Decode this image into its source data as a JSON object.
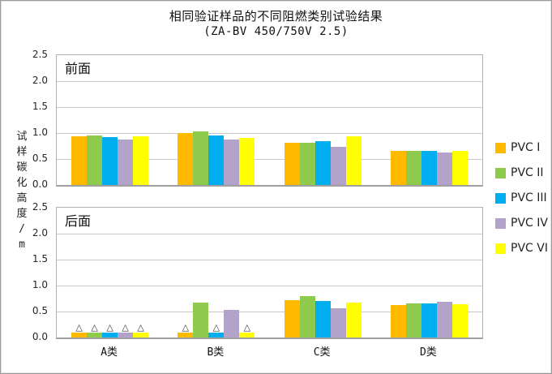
{
  "title": "相同验证样品的不同阻燃类别试验结果",
  "subtitle": "(ZA-BV 450/750V 2.5)",
  "y_axis_title": "试样碳化高度/m",
  "marker_glyph": "△",
  "colors": {
    "pvc1": "#ffba00",
    "pvc2": "#8ecb4d",
    "pvc3": "#00aeef",
    "pvc4": "#b3a2c9",
    "pvc6": "#ffff00",
    "gridline": "#c8c8c8",
    "panel_border": "#a0a0a0"
  },
  "legend": {
    "entries": [
      {
        "label": "PVC I",
        "color": "#ffba00"
      },
      {
        "label": "PVC II",
        "color": "#8ecb4d"
      },
      {
        "label": "PVC III",
        "color": "#00aeef"
      },
      {
        "label": "PVC IV",
        "color": "#b3a2c9"
      },
      {
        "label": "PVC VI",
        "color": "#ffff00"
      }
    ]
  },
  "chart_data": [
    {
      "type": "bar",
      "panel_label": "前面",
      "categories": [
        "A类",
        "B类",
        "C类",
        "D类"
      ],
      "ylim": [
        0,
        2.5
      ],
      "yticks": [
        "2.5",
        "2.0",
        "1.5",
        "1.0",
        "0.5",
        "0.0"
      ],
      "grid": true,
      "series": [
        {
          "name": "PVC I",
          "color": "#ffba00",
          "values": [
            0.93,
            1.0,
            0.81,
            0.66
          ]
        },
        {
          "name": "PVC II",
          "color": "#8ecb4d",
          "values": [
            0.96,
            1.03,
            0.81,
            0.66
          ]
        },
        {
          "name": "PVC III",
          "color": "#00aeef",
          "values": [
            0.92,
            0.95,
            0.84,
            0.66
          ]
        },
        {
          "name": "PVC IV",
          "color": "#b3a2c9",
          "values": [
            0.87,
            0.88,
            0.73,
            0.63
          ]
        },
        {
          "name": "PVC VI",
          "color": "#ffff00",
          "values": [
            0.94,
            0.91,
            0.94,
            0.65
          ]
        }
      ]
    },
    {
      "type": "bar",
      "panel_label": "后面",
      "categories": [
        "A类",
        "B类",
        "C类",
        "D类"
      ],
      "ylim": [
        0,
        2.5
      ],
      "yticks": [
        "2.5",
        "2.0",
        "1.5",
        "1.0",
        "0.5",
        "0.0"
      ],
      "grid": true,
      "series": [
        {
          "name": "PVC I",
          "color": "#ffba00",
          "values": [
            0.1,
            0.1,
            0.72,
            0.63
          ],
          "markers": [
            true,
            true,
            false,
            false
          ]
        },
        {
          "name": "PVC II",
          "color": "#8ecb4d",
          "values": [
            0.1,
            0.67,
            0.8,
            0.65
          ],
          "markers": [
            true,
            false,
            false,
            false
          ]
        },
        {
          "name": "PVC III",
          "color": "#00aeef",
          "values": [
            0.1,
            0.1,
            0.71,
            0.65
          ],
          "markers": [
            true,
            true,
            false,
            false
          ]
        },
        {
          "name": "PVC IV",
          "color": "#b3a2c9",
          "values": [
            0.1,
            0.53,
            0.57,
            0.68
          ],
          "markers": [
            true,
            false,
            false,
            false
          ]
        },
        {
          "name": "PVC VI",
          "color": "#ffff00",
          "values": [
            0.1,
            0.1,
            0.67,
            0.64
          ],
          "markers": [
            true,
            true,
            false,
            false
          ]
        }
      ]
    }
  ]
}
